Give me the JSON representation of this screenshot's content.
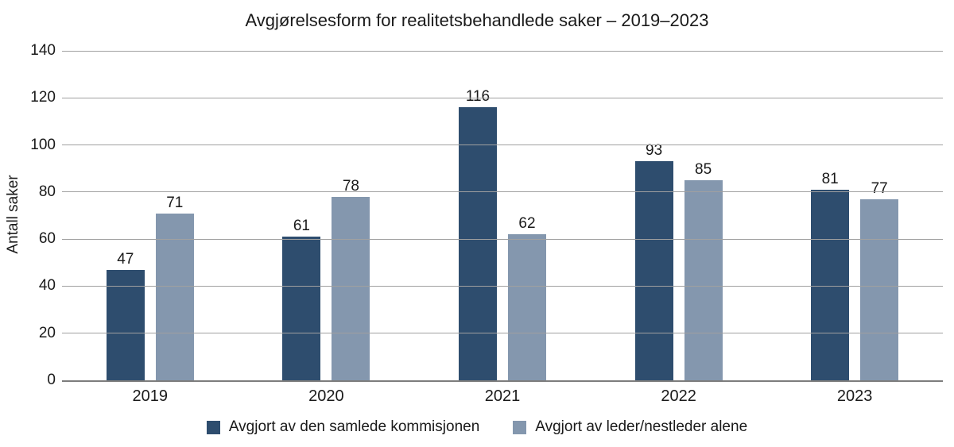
{
  "chart_data": {
    "type": "bar",
    "title": "Avgjørelsesform for realitetsbehandlede saker – 2019–2023",
    "xlabel": "",
    "ylabel": "Antall saker",
    "categories": [
      "2019",
      "2020",
      "2021",
      "2022",
      "2023"
    ],
    "series": [
      {
        "name": "Avgjort av den samlede kommisjonen",
        "color": "#2E4D6E",
        "values": [
          47,
          61,
          116,
          93,
          81
        ]
      },
      {
        "name": "Avgjort av leder/nestleder alene",
        "color": "#8497AE",
        "values": [
          71,
          78,
          62,
          85,
          77
        ]
      }
    ],
    "ylim": [
      0,
      140
    ],
    "yticks": [
      0,
      20,
      40,
      60,
      80,
      100,
      120,
      140
    ],
    "grid": true,
    "gridline_color": "#a0a0a0",
    "axis_line_color": "#7d7d7d",
    "legend_position": "bottom",
    "background_color": "#ffffff",
    "text_color": "#1a1a1a"
  }
}
